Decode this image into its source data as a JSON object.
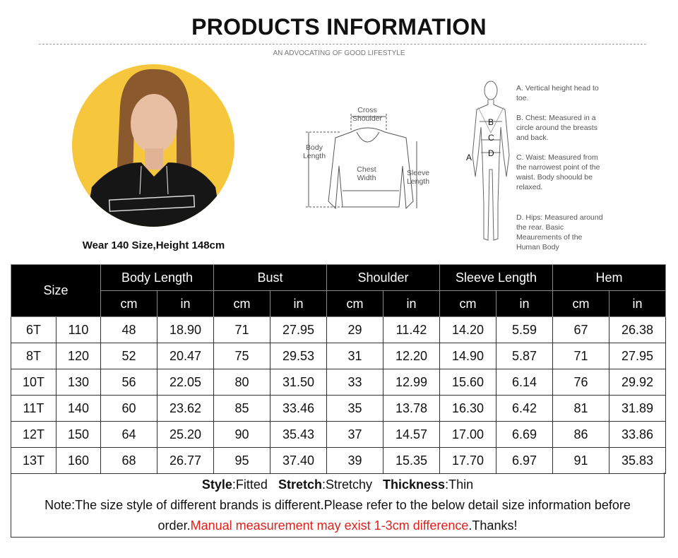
{
  "header": {
    "title": "PRODUCTS INFORMATION",
    "subtitle": "AN ADVOCATING OF GOOD LIFESTYLE"
  },
  "model": {
    "caption": "Wear 140 Size,Height 148cm"
  },
  "garment_diagram": {
    "cross_shoulder": "Cross Shoulder",
    "body_length": "Body Length",
    "chest_width": "Chest Width",
    "sleeve_length": "Sleeve Length"
  },
  "body_diagram": {
    "markers": [
      "A",
      "B",
      "C",
      "D"
    ],
    "notes": [
      "A. Vertical height head to toe.",
      "B. Chest: Measured in a circle around the breasts and back.",
      "C. Waist: Measured from the narrowest point of the waist. Body shoould be relaxed.",
      "D. Hips: Measured around the rear. Basic Meaurements of the Human Body"
    ]
  },
  "table": {
    "size_header": "Size",
    "groups": [
      {
        "name": "Body Length",
        "units": [
          "cm",
          "in"
        ]
      },
      {
        "name": "Bust",
        "units": [
          "cm",
          "in"
        ]
      },
      {
        "name": "Shoulder",
        "units": [
          "cm",
          "in"
        ]
      },
      {
        "name": "Sleeve Length",
        "units": [
          "cm",
          "in"
        ]
      },
      {
        "name": "Hem",
        "units": [
          "cm",
          "in"
        ]
      }
    ],
    "rows": [
      [
        "6T",
        "110",
        "48",
        "18.90",
        "71",
        "27.95",
        "29",
        "11.42",
        "14.20",
        "5.59",
        "67",
        "26.38"
      ],
      [
        "8T",
        "120",
        "52",
        "20.47",
        "75",
        "29.53",
        "31",
        "12.20",
        "14.90",
        "5.87",
        "71",
        "27.95"
      ],
      [
        "10T",
        "130",
        "56",
        "22.05",
        "80",
        "31.50",
        "33",
        "12.99",
        "15.60",
        "6.14",
        "76",
        "29.92"
      ],
      [
        "11T",
        "140",
        "60",
        "23.62",
        "85",
        "33.46",
        "35",
        "13.78",
        "16.30",
        "6.42",
        "81",
        "31.89"
      ],
      [
        "12T",
        "150",
        "64",
        "25.20",
        "90",
        "35.43",
        "37",
        "14.57",
        "17.00",
        "6.69",
        "86",
        "33.86"
      ],
      [
        "13T",
        "160",
        "68",
        "26.77",
        "95",
        "37.40",
        "39",
        "15.35",
        "17.70",
        "6.97",
        "91",
        "35.83"
      ]
    ]
  },
  "footer": {
    "style_label": "Style",
    "style_value": ":Fitted",
    "stretch_label": "Stretch",
    "stretch_value": ":Stretchy",
    "thickness_label": "Thickness",
    "thickness_value": ":Thin",
    "note": "Note:The size style of different brands is different.Please refer to the below detail size information before order.",
    "warning": "Manual measurement may exist 1-3cm difference",
    "closing": ".Thanks!"
  }
}
